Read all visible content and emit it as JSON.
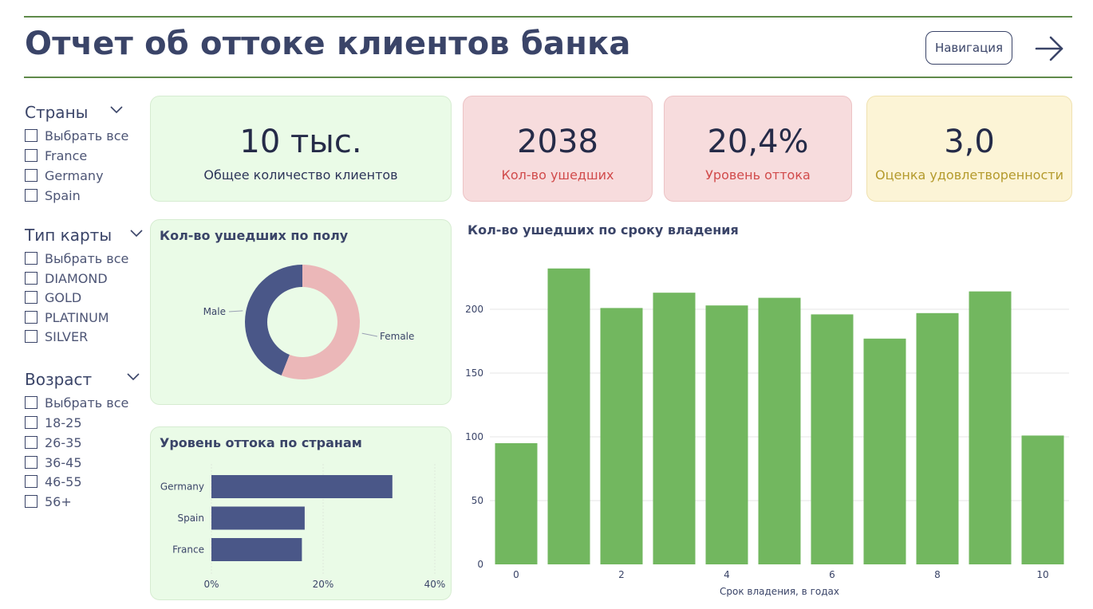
{
  "header": {
    "title": "Отчет об оттоке клиентов банка",
    "nav_button": "Навигация",
    "nav_arrow_icon": "arrow-right-icon"
  },
  "filters": {
    "countries": {
      "title": "Страны",
      "options": [
        "Выбрать все",
        "France",
        "Germany",
        "Spain"
      ]
    },
    "card_type": {
      "title": "Тип карты",
      "options": [
        "Выбрать все",
        "DIAMOND",
        "GOLD",
        "PLATINUM",
        "SILVER"
      ]
    },
    "age": {
      "title": "Возраст",
      "options": [
        "Выбрать все",
        "18-25",
        "26-35",
        "36-45",
        "46-55",
        "56+"
      ]
    }
  },
  "kpis": {
    "total": {
      "value": "10 тыс.",
      "label": "Общее количество клиентов",
      "label_color": "#2d3559"
    },
    "churned": {
      "value": "2038",
      "label": "Кол-во ушедших",
      "label_color": "#d14b4b"
    },
    "rate": {
      "value": "20,4%",
      "label": "Уровень оттока",
      "label_color": "#d14b4b"
    },
    "satisfaction": {
      "value": "3,0",
      "label": "Оценка удовлетворенности",
      "label_color": "#b49a2c"
    }
  },
  "colors": {
    "navy": "#4a5788",
    "pink": "#ebb7b8",
    "green": "#72b75f",
    "accent_rule": "#5f8a4a"
  },
  "chart_data": [
    {
      "type": "pie",
      "title": "Кол-во ушедших по полу",
      "variant": "donut",
      "categories": [
        "Male",
        "Female"
      ],
      "values": [
        898,
        1140
      ]
    },
    {
      "type": "bar",
      "orientation": "horizontal",
      "title": "Уровень оттока по странам",
      "categories": [
        "Germany",
        "Spain",
        "France"
      ],
      "values": [
        32.4,
        16.7,
        16.2
      ],
      "xlim": [
        0,
        40
      ],
      "xticks": [
        "0%",
        "20%",
        "40%"
      ]
    },
    {
      "type": "bar",
      "title": "Кол-во ушедших по сроку владения",
      "xlabel": "Срок владения, в годах",
      "ylabel": "",
      "categories": [
        0,
        1,
        2,
        3,
        4,
        5,
        6,
        7,
        8,
        9,
        10
      ],
      "values": [
        95,
        232,
        201,
        213,
        203,
        209,
        196,
        177,
        197,
        214,
        101
      ],
      "ylim": [
        0,
        240
      ],
      "yticks": [
        0,
        50,
        100,
        150,
        200
      ],
      "xticks": [
        0,
        2,
        4,
        6,
        8,
        10
      ],
      "grid": true
    }
  ]
}
